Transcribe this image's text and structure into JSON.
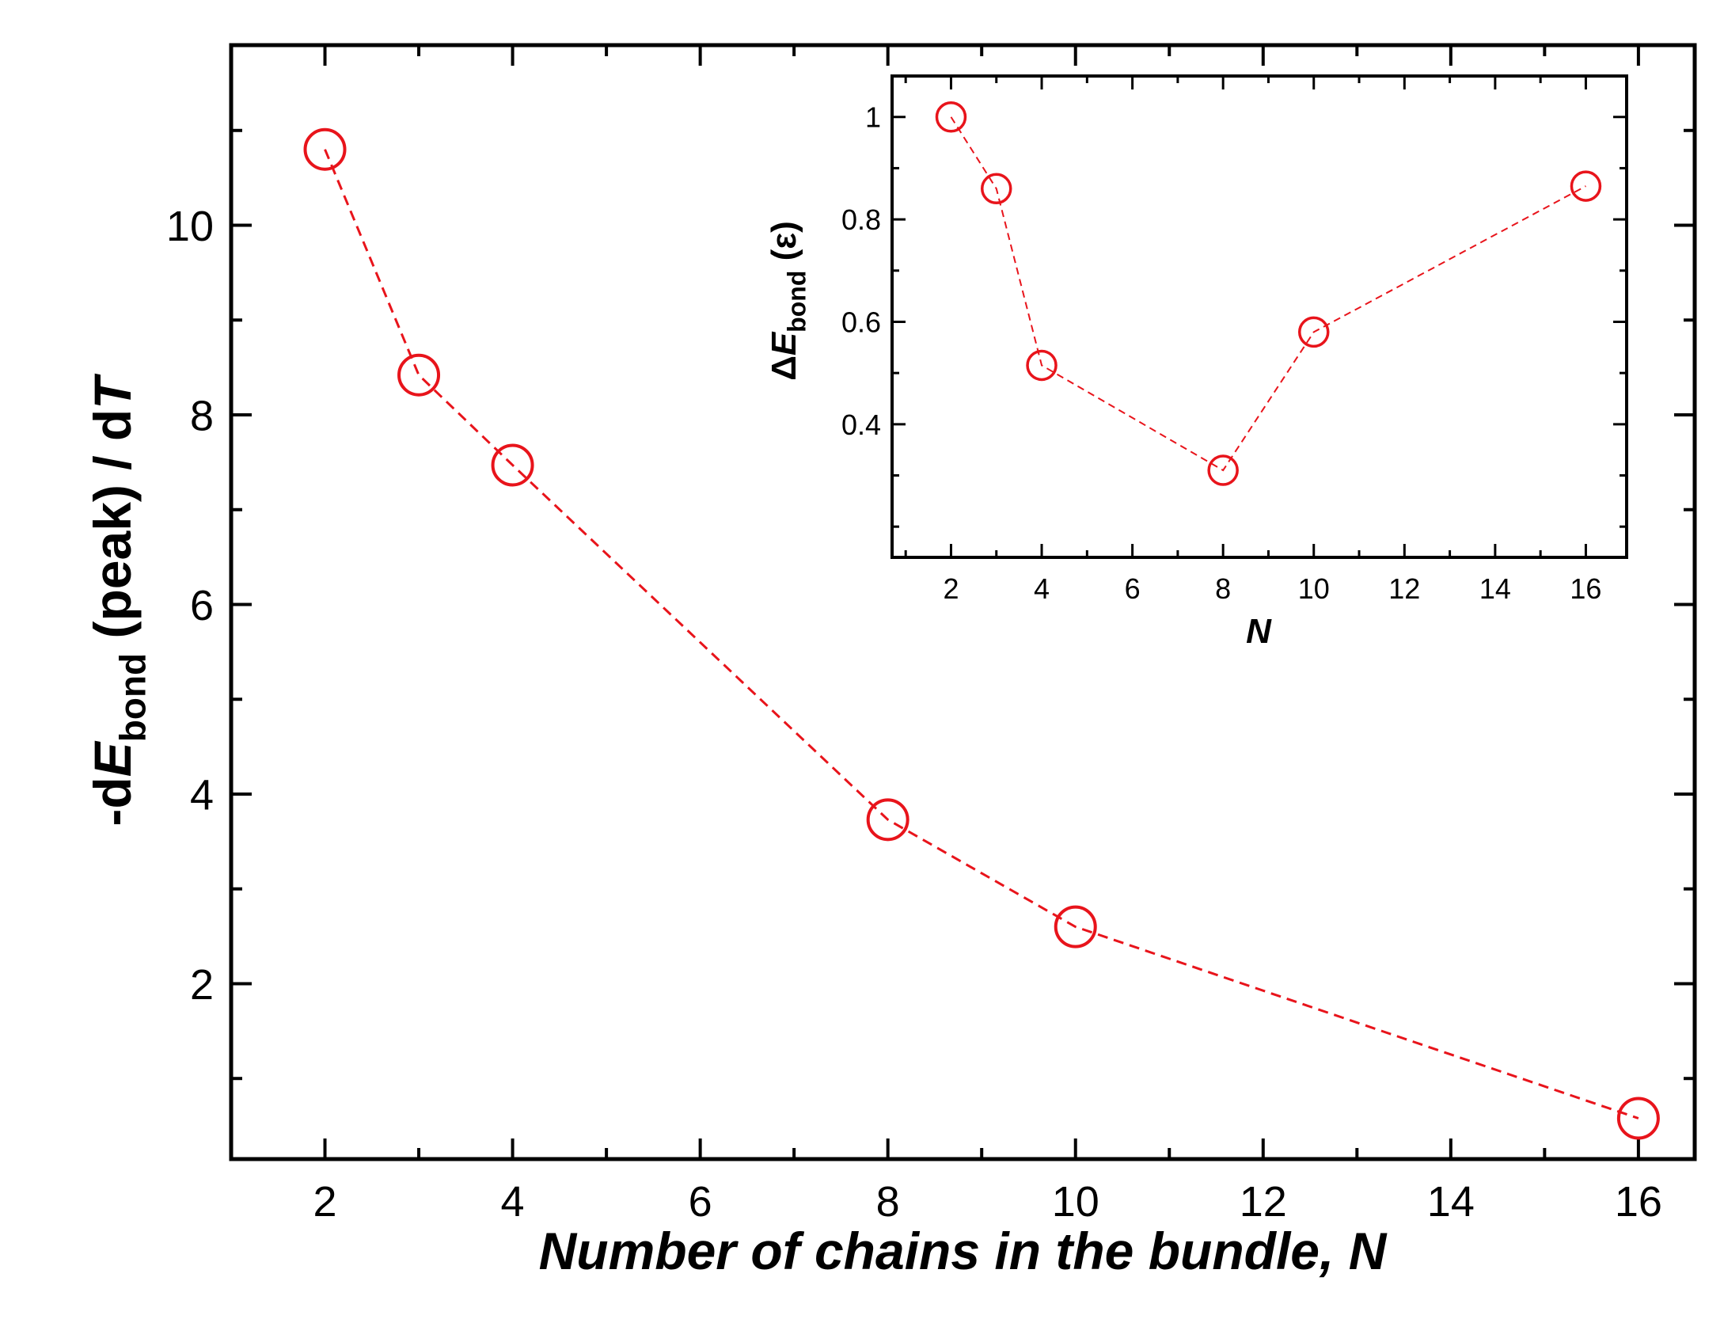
{
  "chart_data": [
    {
      "type": "line",
      "x": [
        2,
        3,
        4,
        8,
        10,
        16
      ],
      "series": [
        {
          "values": [
            10.8,
            8.42,
            7.47,
            3.73,
            2.6,
            0.58
          ],
          "color": "#e8141b",
          "marker": "open-circle",
          "line": "dashed"
        }
      ],
      "xlabel": "Number of chains in the bundle, N",
      "ylabel": "-dE_bond (peak) / dT",
      "ylabel_parts": {
        "pre": "-d",
        "var": "E",
        "sub": "bond",
        "post": " (peak) / d",
        "var2": "T"
      },
      "xlim": [
        1,
        16.6
      ],
      "ylim": [
        0.15,
        11.9
      ],
      "xticks": [
        2,
        4,
        6,
        8,
        10,
        12,
        14,
        16
      ],
      "yticks": [
        2,
        4,
        6,
        8,
        10
      ],
      "grid": false
    },
    {
      "type": "line",
      "x": [
        2,
        3,
        4,
        8,
        10,
        16
      ],
      "series": [
        {
          "values": [
            1.0,
            0.86,
            0.515,
            0.31,
            0.58,
            0.865
          ],
          "color": "#e8141b",
          "marker": "open-circle",
          "line": "dashed"
        }
      ],
      "xlabel": "N",
      "ylabel": "ΔE_bond (ε)",
      "ylabel_parts": {
        "pre": "Δ",
        "var": "E",
        "sub": "bond",
        "post": " (ε)"
      },
      "xlim": [
        0.7,
        16.9
      ],
      "ylim": [
        0.14,
        1.08
      ],
      "xticks": [
        2,
        4,
        6,
        8,
        10,
        12,
        14,
        16
      ],
      "yticks": [
        0.4,
        0.6,
        0.8,
        1
      ],
      "grid": false
    }
  ]
}
